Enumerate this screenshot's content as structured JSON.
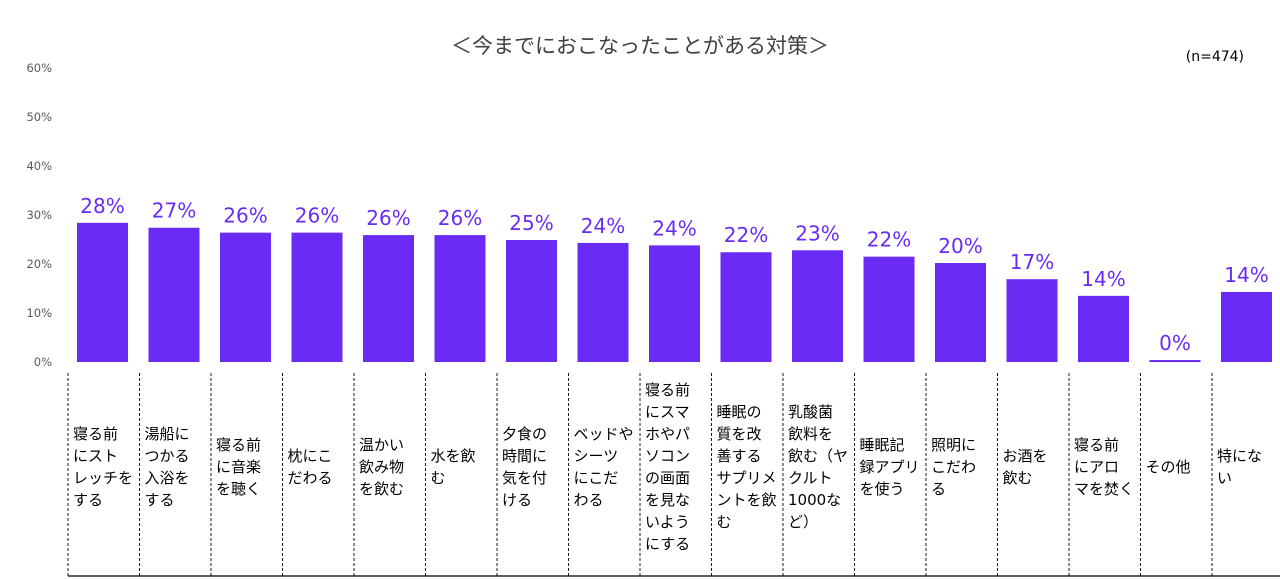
{
  "chart_data": {
    "type": "bar",
    "title": "＜今までにおこなったことがある対策＞",
    "note": "(n=474)",
    "ylim": [
      0,
      60
    ],
    "yticks": [
      "0%",
      "10%",
      "20%",
      "30%",
      "40%",
      "50%",
      "60%"
    ],
    "color": "#6a2cf5",
    "categories": [
      "寝る前\nにスト\nレッチを\nする",
      "湯船に\nつかる\n入浴を\nする",
      "寝る前\nに音楽\nを聴く",
      "枕にこ\nだわる",
      "温かい\n飲み物\nを飲む",
      "水を飲\nむ",
      "夕食の\n時間に\n気を付\nける",
      "ベッドや\nシーツ\nにこだ\nわる",
      "寝る前\nにスマ\nホやパ\nソコン\nの画面\nを見な\nいよう\nにする",
      "睡眠の\n質を改\n善する\nサプリメ\nントを飲\nむ",
      "乳酸菌\n飲料を\n飲む（ヤ\nクルト\n1000な\nど）",
      "睡眠記\n録アプリ\nを使う",
      "照明に\nこだわ\nる",
      "お酒を\n飲む",
      "寝る前\nにアロ\nマを焚く",
      "その他",
      "特にな\nい"
    ],
    "values": [
      28.4,
      27.4,
      26.4,
      26.4,
      25.9,
      25.9,
      24.9,
      24.3,
      23.8,
      22.4,
      22.8,
      21.5,
      20.2,
      16.9,
      13.5,
      0.4,
      14.3
    ],
    "labels": [
      "28%",
      "27%",
      "26%",
      "26%",
      "26%",
      "26%",
      "25%",
      "24%",
      "24%",
      "22%",
      "23%",
      "22%",
      "20%",
      "17%",
      "14%",
      "0%",
      "14%"
    ]
  }
}
